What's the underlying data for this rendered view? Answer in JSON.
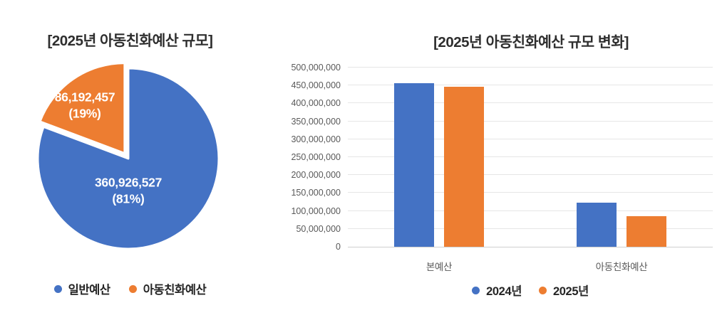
{
  "accent_colors": {
    "blue": "#4472C4",
    "orange": "#ED7D31"
  },
  "chart_data": [
    {
      "type": "pie",
      "title": "[2025년 아동친화예산 규모]",
      "labels": [
        "일반예산",
        "아동친화예산"
      ],
      "values": [
        360926527,
        86192457
      ],
      "percents": [
        "81%",
        "19%"
      ],
      "data_labels": [
        "360,926,527 (81%)",
        "86,192,457\n(19%)"
      ],
      "colors": [
        "#4472C4",
        "#ED7D31"
      ],
      "legend_position": "bottom",
      "exploded_slice": "아동친화예산"
    },
    {
      "type": "bar",
      "title": "[2025년 아동친화예산 규모 변화]",
      "categories": [
        "본예산",
        "아동친화예산"
      ],
      "series": [
        {
          "name": "2024년",
          "color": "#4472C4",
          "values": [
            457000000,
            124000000
          ]
        },
        {
          "name": "2025년",
          "color": "#ED7D31",
          "values": [
            447118984,
            86192457
          ]
        }
      ],
      "ylim": [
        0,
        500000000
      ],
      "ytick_step": 50000000,
      "ytick_labels": [
        "0",
        "50,000,000",
        "100,000,000",
        "150,000,000",
        "200,000,000",
        "250,000,000",
        "300,000,000",
        "350,000,000",
        "400,000,000",
        "450,000,000",
        "500,000,000"
      ],
      "grid": true,
      "legend_position": "bottom"
    }
  ]
}
